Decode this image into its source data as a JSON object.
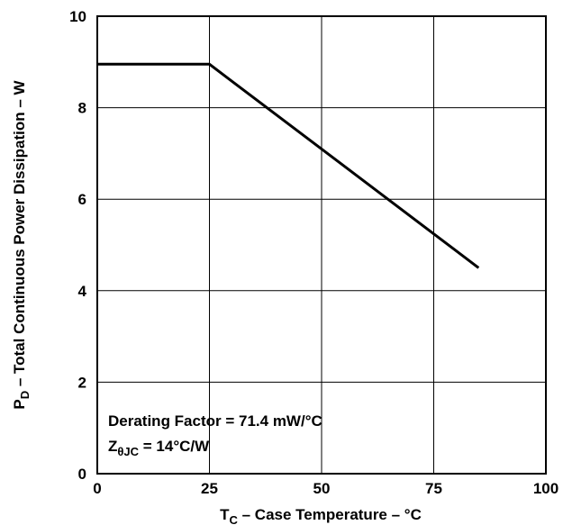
{
  "chart_data": {
    "type": "line",
    "title": "",
    "xlabel": {
      "main": "T",
      "sub": "C",
      "rest": " – Case Temperature – °C"
    },
    "ylabel": {
      "main": "P",
      "sub": "D",
      "rest": " – Total Continuous Power Dissipation – W"
    },
    "xlim": [
      0,
      100
    ],
    "ylim": [
      0,
      10
    ],
    "xticks": [
      "0",
      "25",
      "50",
      "75",
      "100"
    ],
    "yticks": [
      "0",
      "2",
      "4",
      "6",
      "8",
      "10"
    ],
    "grid": true,
    "series": [
      {
        "x": [
          0,
          25,
          85
        ],
        "y": [
          8.95,
          8.95,
          4.5
        ]
      }
    ],
    "annotations": [
      {
        "text": "Derating Factor = 71.4 mW/°C"
      },
      {
        "main": "Z",
        "sub": "θJC",
        "rest": " = 14°C/W"
      }
    ]
  }
}
